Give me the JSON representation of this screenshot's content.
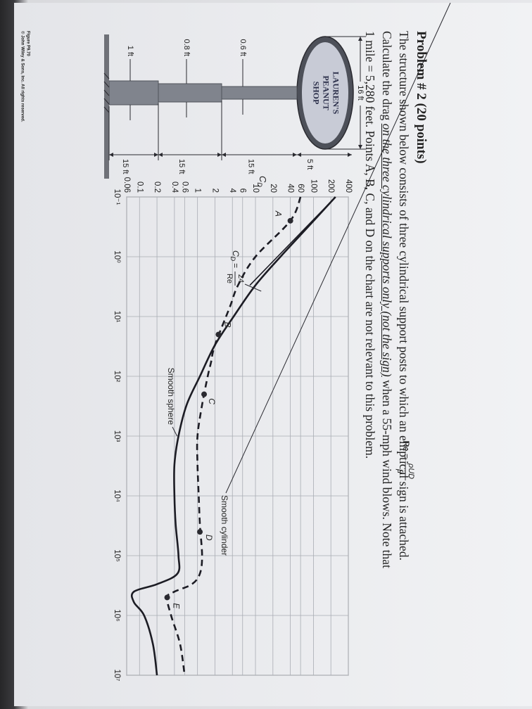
{
  "problem": {
    "heading": "Problem # 2 (20 points)",
    "lines": [
      [
        {
          "text": "The structure shown below consists of three cylindrical support posts to which an elliptical sign is attached."
        }
      ],
      [
        {
          "text": "Calculate the drag "
        },
        {
          "text": "on the three cylindrical supports only (not the sign)",
          "emphasis": true
        },
        {
          "text": " when a 55-mph wind blows. Note that"
        }
      ],
      [
        {
          "text": "1 mile = 5,280 feet. Points A, B, C, and D on the chart are not relevant to this problem."
        }
      ]
    ]
  },
  "figure": {
    "sign": [
      "LAUREN'S",
      "PEANUT",
      "SHOP"
    ],
    "sign_width": "16 ft",
    "sign_height": "5 ft",
    "post_heights": [
      "15 ft",
      "15 ft",
      "15 ft"
    ],
    "post_diameters": [
      "0.6 ft",
      "0.8 ft",
      "1 ft"
    ],
    "credit": [
      "Figure P9.70",
      "© John Wiley & Sons, Inc. All rights reserved."
    ]
  },
  "chart_data": {
    "type": "line",
    "x_scale": "log",
    "y_scale": "log",
    "grid": true,
    "x_label": {
      "lhs": "Re =",
      "numerator": "ρUD",
      "denominator": "μ"
    },
    "y_label": {
      "symbol": "C",
      "subscript": "D"
    },
    "xlim": [
      0.1,
      10000000
    ],
    "xticks": [
      {
        "value": 0.1,
        "label": "10⁻¹"
      },
      {
        "value": 1,
        "label": "10⁰"
      },
      {
        "value": 10,
        "label": "10¹"
      },
      {
        "value": 100,
        "label": "10²"
      },
      {
        "value": 1000,
        "label": "10³"
      },
      {
        "value": 10000,
        "label": "10⁴"
      },
      {
        "value": 100000,
        "label": "10⁵"
      },
      {
        "value": 1000000,
        "label": "10⁶"
      },
      {
        "value": 10000000,
        "label": "10⁷"
      }
    ],
    "ylim": [
      0.06,
      400
    ],
    "yticks": [
      0.06,
      0.1,
      0.2,
      0.4,
      0.6,
      1,
      2,
      4,
      6,
      10,
      20,
      40,
      60,
      100,
      200,
      400
    ],
    "series": [
      {
        "name": "Smooth sphere",
        "color": "#1c1c24",
        "line_style": "solid",
        "x": [
          0.1,
          0.3,
          1,
          3,
          10,
          30,
          100,
          300,
          1000,
          3000,
          10000,
          30000,
          100000,
          200000,
          300000,
          400000,
          600000,
          1000000,
          3000000,
          10000000
        ],
        "values": [
          240,
          85,
          27,
          10,
          4.2,
          2,
          1.1,
          0.65,
          0.47,
          0.4,
          0.4,
          0.42,
          0.47,
          0.45,
          0.2,
          0.08,
          0.08,
          0.12,
          0.17,
          0.2
        ]
      },
      {
        "name": "Smooth cylinder",
        "color": "#1c1c24",
        "line_style": "dashed",
        "x": [
          0.1,
          0.25,
          1,
          3,
          7,
          30,
          60,
          100,
          300,
          1000,
          3000,
          10000,
          30000,
          100000,
          200000,
          300000,
          400000,
          500000,
          1000000,
          3000000,
          10000000
        ],
        "values": [
          60,
          40,
          10,
          5,
          3.6,
          2,
          1.7,
          1.5,
          1.2,
          1.0,
          1.0,
          1.05,
          1.1,
          1.2,
          1.1,
          0.8,
          0.4,
          0.3,
          0.35,
          0.5,
          0.6
        ]
      }
    ],
    "reference_line": {
      "color": "#1c1c24",
      "x": [
        0.1,
        3
      ],
      "values": [
        240,
        8
      ],
      "label": {
        "symbol": "C",
        "subscript": "D",
        "equals": "=",
        "numerator": "24",
        "denominator": "Re"
      }
    },
    "points": [
      {
        "label": "A",
        "x": 0.25,
        "y": 40
      },
      {
        "label": "B",
        "x": 20,
        "y": 2.3
      },
      {
        "label": "C",
        "x": 200,
        "y": 1.3
      },
      {
        "label": "D",
        "x": 40000,
        "y": 1.1
      },
      {
        "label": "E",
        "x": 500000,
        "y": 0.3
      }
    ]
  }
}
